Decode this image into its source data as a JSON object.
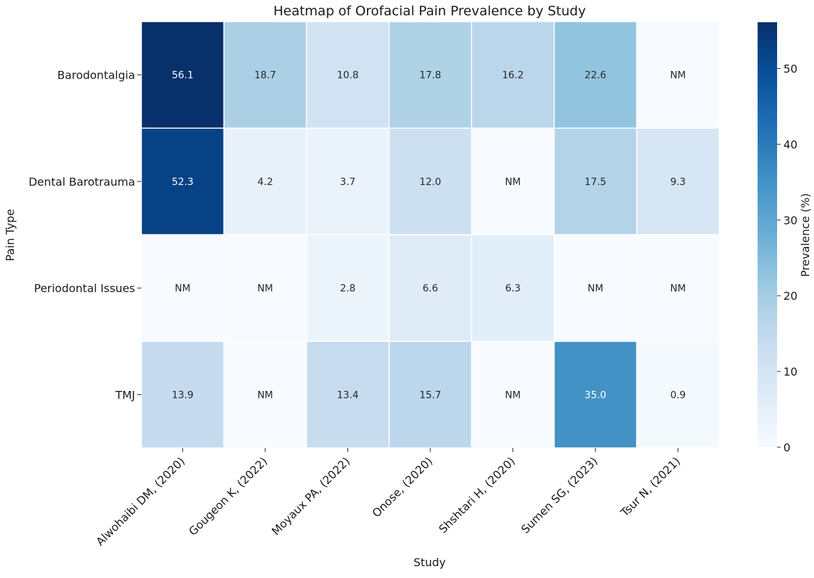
{
  "chart_data": {
    "type": "heatmap",
    "title": "Heatmap of Orofacial Pain Prevalence by Study",
    "xlabel": "Study",
    "ylabel": "Pain Type",
    "colorbar_label": "Prevalence (%)",
    "colormap": "Blues",
    "vmin": 0,
    "vmax": 56.1,
    "colorbar_ticks": [
      0,
      10,
      20,
      30,
      40,
      50
    ],
    "x_categories": [
      "Alwohaibi DM, (2020)",
      "Gougeon K, (2022)",
      "Moyaux PA, (2022)",
      "Onose, (2020)",
      "Shshtari H, (2020)",
      "Sumen SG, (2023)",
      "Tsur N, (2021)"
    ],
    "y_categories": [
      "Barodontalgia",
      "Dental Barotrauma",
      "Periodontal Issues",
      "TMJ"
    ],
    "values": [
      [
        56.1,
        18.7,
        10.8,
        17.8,
        16.2,
        22.6,
        null
      ],
      [
        52.3,
        4.2,
        3.7,
        12.0,
        null,
        17.5,
        9.3
      ],
      [
        null,
        null,
        2.8,
        6.6,
        6.3,
        null,
        null
      ],
      [
        13.9,
        null,
        13.4,
        15.7,
        null,
        35.0,
        0.9
      ]
    ],
    "missing_label": "NM",
    "value_format": "one_decimal"
  }
}
